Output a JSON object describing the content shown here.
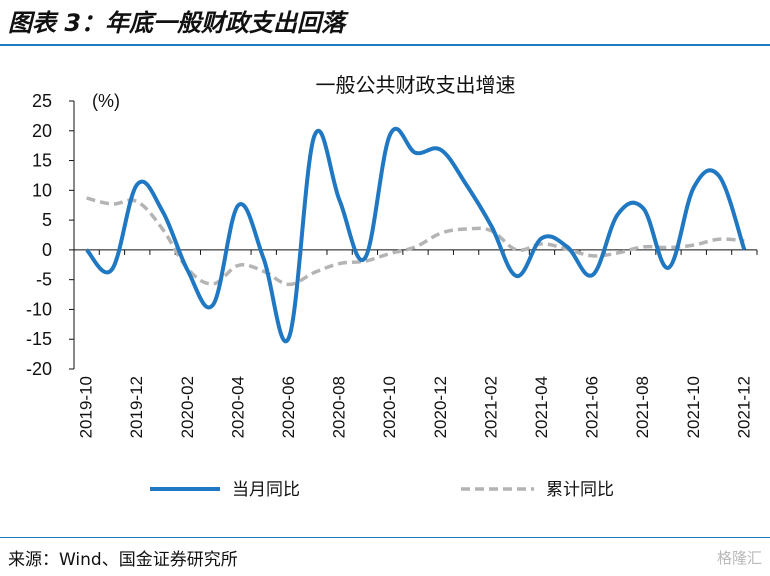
{
  "figure": {
    "title": "图表 3：年底一般财政支出回落",
    "source": "来源：Wind、国金证券研究所",
    "watermark": "格隆汇"
  },
  "colors": {
    "monthly": "#1f78c1",
    "cumulative": "#b4b4b4",
    "rule": "#1f7cc1"
  },
  "chart_data": {
    "type": "line",
    "title": "一般公共财政支出增速",
    "unit_label": "(%)",
    "ylim": [
      -20,
      25
    ],
    "yticks": [
      "25",
      "20",
      "15",
      "10",
      "5",
      "0",
      "-5",
      "-10",
      "-15",
      "-20"
    ],
    "x": [
      "2019-10",
      "2019-11",
      "2019-12",
      "2020-01",
      "2020-02",
      "2020-03",
      "2020-04",
      "2020-05",
      "2020-06",
      "2020-07",
      "2020-08",
      "2020-09",
      "2020-10",
      "2020-11",
      "2020-12",
      "2021-01",
      "2021-02",
      "2021-03",
      "2021-04",
      "2021-05",
      "2021-06",
      "2021-07",
      "2021-08",
      "2021-09",
      "2021-10",
      "2021-11",
      "2021-12"
    ],
    "xtick_labels": [
      "2019-10",
      "2019-12",
      "2020-02",
      "2020-04",
      "2020-06",
      "2020-08",
      "2020-10",
      "2020-12",
      "2021-02",
      "2021-04",
      "2021-06",
      "2021-08",
      "2021-10",
      "2021-12"
    ],
    "series": [
      {
        "name": "当月同比",
        "style": "solid",
        "values": [
          0,
          -3.3,
          11,
          6.5,
          -3.5,
          -9.2,
          7.5,
          -1.5,
          -14.7,
          19.1,
          8.3,
          -1.4,
          19.4,
          16.3,
          16.8,
          11,
          4,
          -4.4,
          2,
          0.5,
          -4.2,
          6,
          7,
          -3,
          10.5,
          12.4,
          0
        ]
      },
      {
        "name": "累计同比",
        "style": "dashed",
        "values": [
          8.7,
          7.7,
          8.1,
          3.5,
          -3.2,
          -5.7,
          -2.6,
          -3.6,
          -5.8,
          -3.8,
          -2.3,
          -1.9,
          -0.6,
          0.5,
          2.8,
          3.5,
          3.2,
          0,
          1,
          0.1,
          -1,
          -0.5,
          0.5,
          0.4,
          0.8,
          1.8,
          1.5
        ]
      }
    ],
    "legend_position": "bottom",
    "grid": false
  }
}
